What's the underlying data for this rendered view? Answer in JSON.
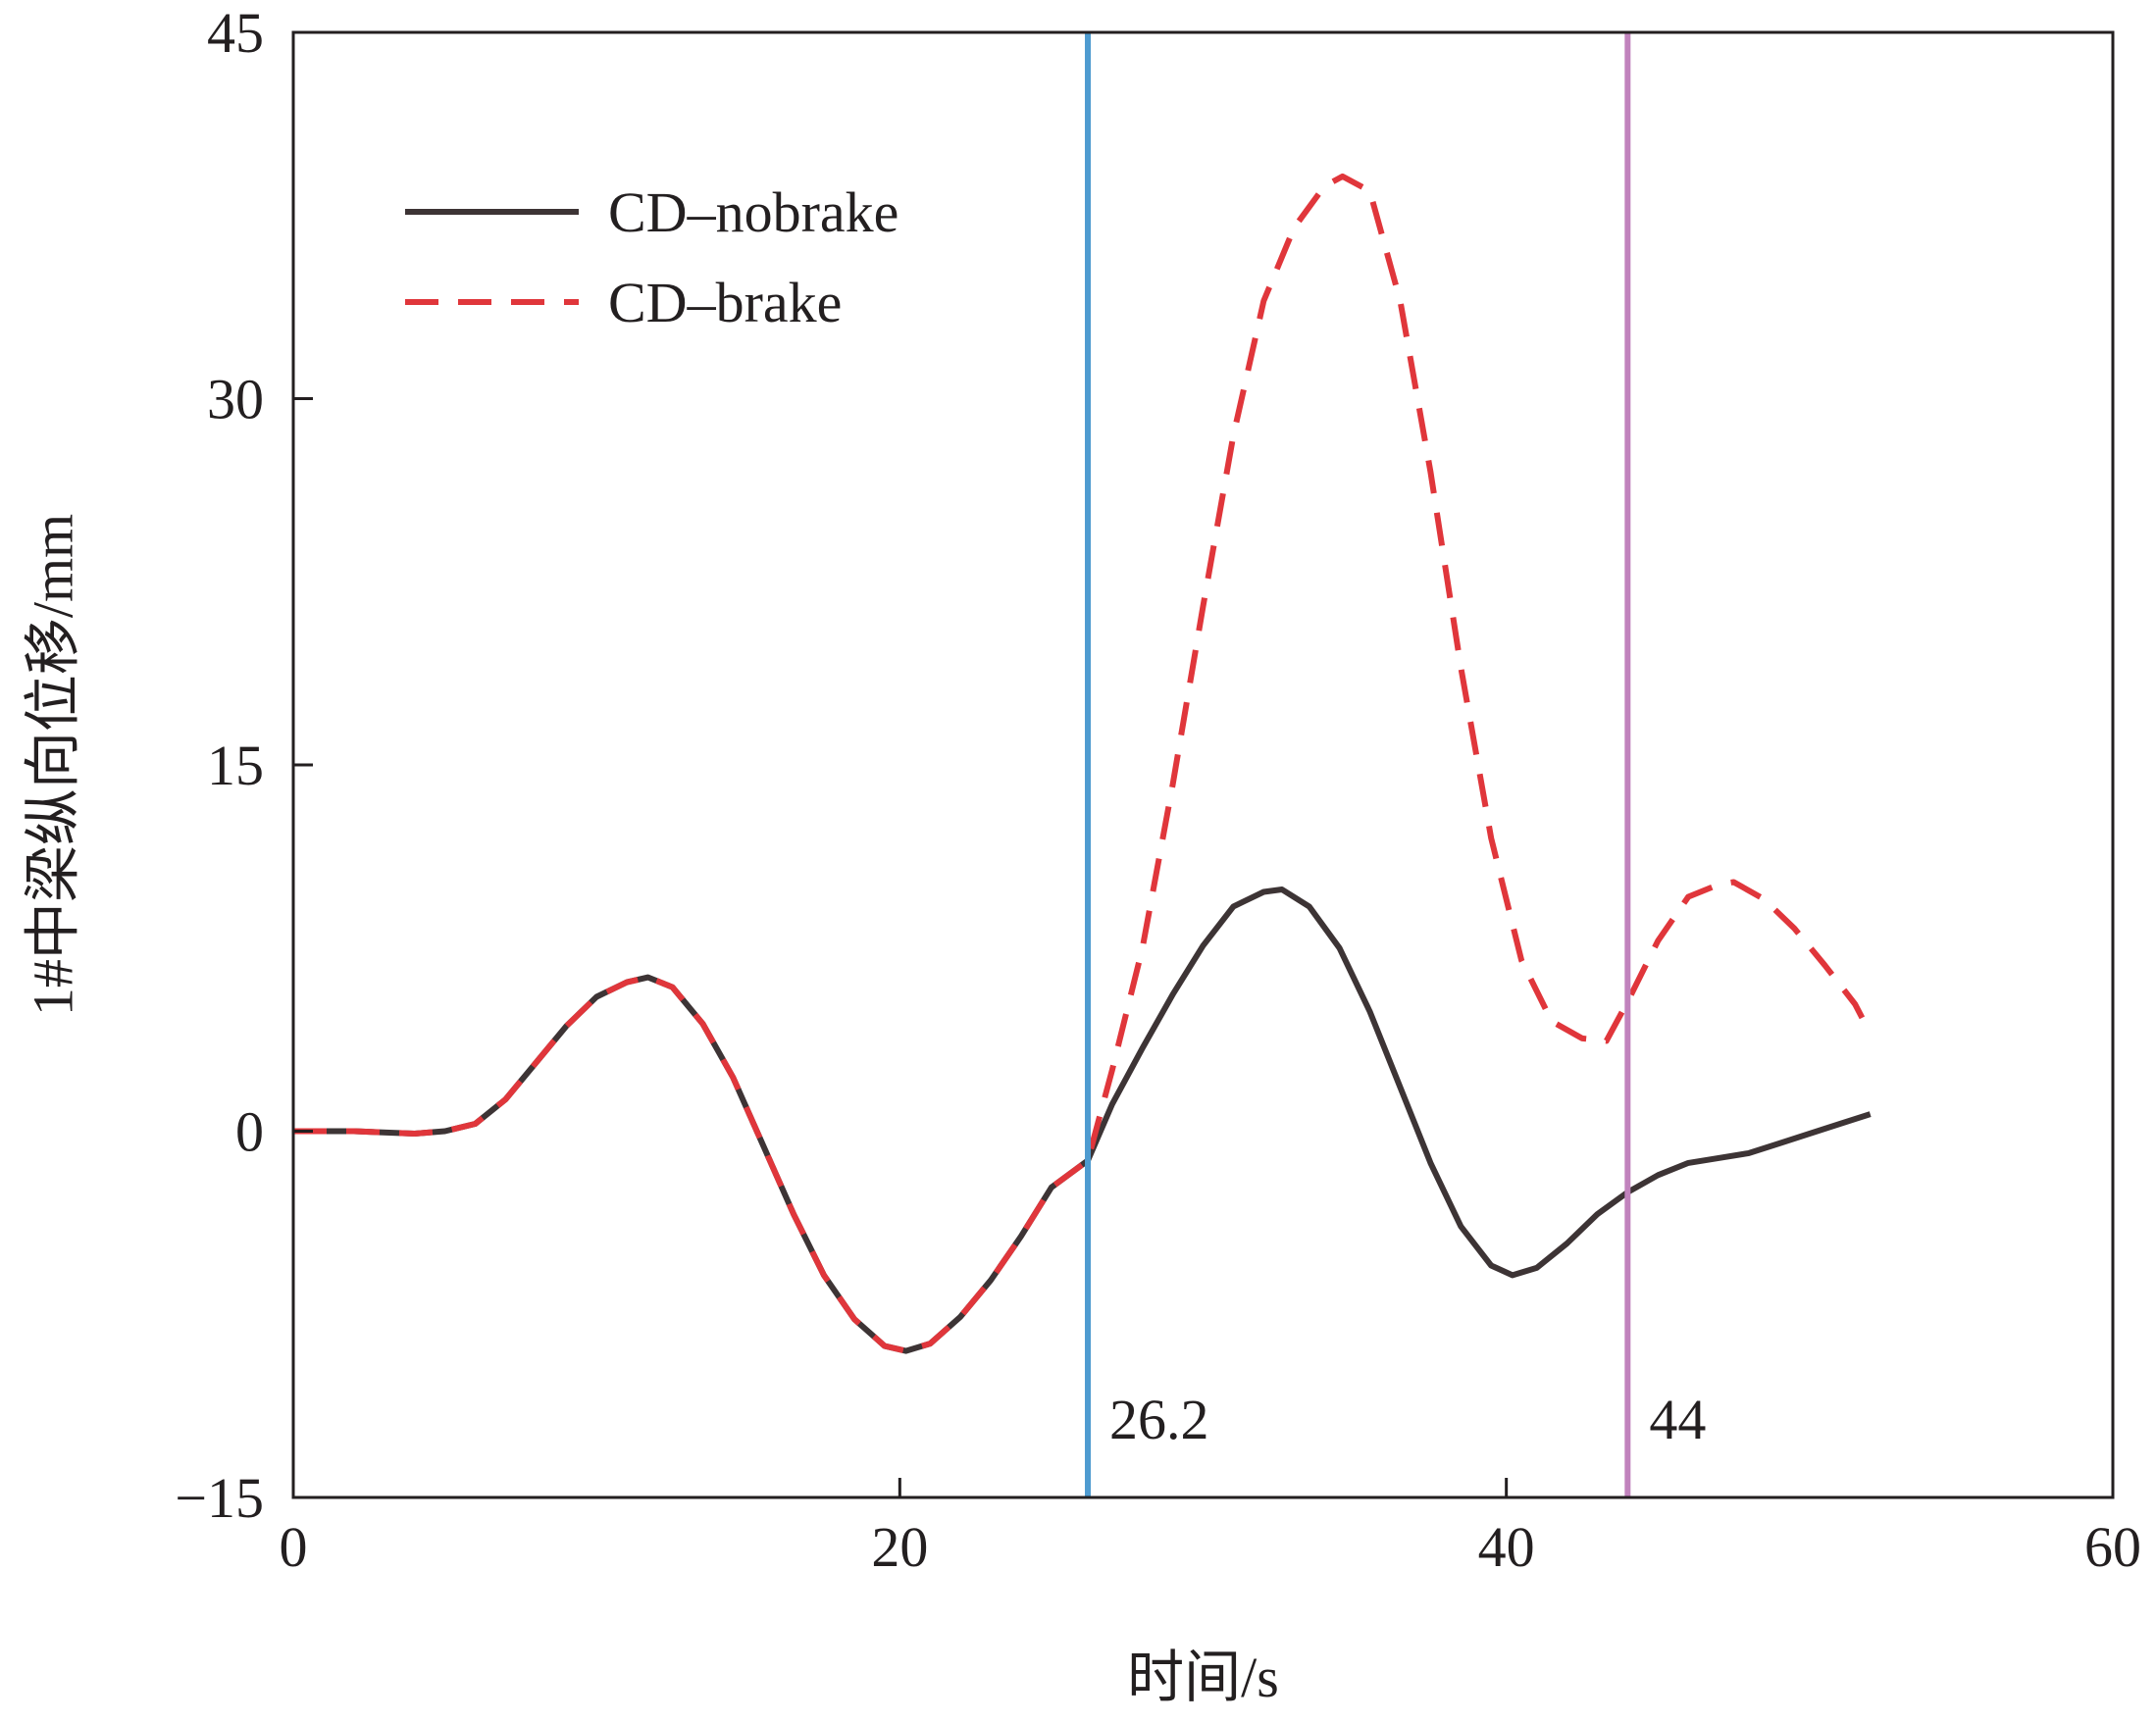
{
  "chart_data": {
    "type": "line",
    "xlabel": "时间/s",
    "ylabel": "1#中梁纵向位移/mm",
    "xlim": [
      0,
      60
    ],
    "ylim": [
      -15,
      45
    ],
    "xticks": [
      0,
      20,
      40,
      60
    ],
    "yticks": [
      -15,
      0,
      15,
      30,
      45
    ],
    "xtick_labels": [
      "0",
      "20",
      "40",
      "60"
    ],
    "ytick_labels": [
      "−15",
      "0",
      "15",
      "30",
      "45"
    ],
    "grid": false,
    "legend_position": "top-left",
    "series": [
      {
        "name": "CD–nobrake",
        "style": "solid",
        "color": "#3d3435",
        "x": [
          0,
          2,
          4,
          5,
          6,
          7,
          8,
          9,
          10,
          11,
          11.7,
          12.5,
          13.5,
          14.5,
          15.5,
          16.5,
          17.5,
          18.5,
          19.5,
          20.2,
          21,
          22,
          23,
          24,
          25,
          26.2,
          27,
          28,
          29,
          30,
          31,
          32,
          32.6,
          33.5,
          34.5,
          35.5,
          36.5,
          37.5,
          38.5,
          39.5,
          40.2,
          41,
          42,
          43,
          44,
          45,
          46,
          47,
          48,
          49,
          50,
          51,
          52
        ],
        "y": [
          0,
          0,
          -0.1,
          0,
          0.3,
          1.3,
          2.8,
          4.3,
          5.5,
          6.1,
          6.3,
          5.9,
          4.4,
          2.2,
          -0.6,
          -3.4,
          -5.9,
          -7.7,
          -8.8,
          -9.0,
          -8.7,
          -7.6,
          -6.1,
          -4.3,
          -2.3,
          -1.2,
          1.1,
          3.4,
          5.6,
          7.6,
          9.2,
          9.8,
          9.9,
          9.2,
          7.5,
          4.9,
          1.8,
          -1.3,
          -3.9,
          -5.5,
          -5.9,
          -5.6,
          -4.6,
          -3.4,
          -2.5,
          -1.8,
          -1.3,
          -1.1,
          -0.9,
          -0.5,
          -0.1,
          0.3,
          0.7
        ]
      },
      {
        "name": "CD–brake",
        "style": "dashed",
        "color": "#e0363b",
        "x": [
          0,
          2,
          4,
          5,
          6,
          7,
          8,
          9,
          10,
          11,
          11.7,
          12.5,
          13.5,
          14.5,
          15.5,
          16.5,
          17.5,
          18.5,
          19.5,
          20.2,
          21,
          22,
          23,
          24,
          25,
          26.2,
          27,
          28,
          29,
          30,
          31,
          32,
          33,
          34,
          34.6,
          35.5,
          36.5,
          37.5,
          38.5,
          39.5,
          40.5,
          41.5,
          42.5,
          43.3,
          44,
          45,
          46,
          47,
          47.5,
          48.5,
          49.5,
          50.5,
          51.5,
          52
        ],
        "y": [
          0,
          0,
          -0.1,
          0,
          0.3,
          1.3,
          2.8,
          4.3,
          5.5,
          6.1,
          6.3,
          5.9,
          4.4,
          2.2,
          -0.6,
          -3.4,
          -5.9,
          -7.7,
          -8.8,
          -9.0,
          -8.7,
          -7.6,
          -6.1,
          -4.3,
          -2.3,
          -1.2,
          2.5,
          7.5,
          14.2,
          21.5,
          28.5,
          34.0,
          37.0,
          38.7,
          39.1,
          38.5,
          34.0,
          27.0,
          19.0,
          12.0,
          7.0,
          4.5,
          3.8,
          3.7,
          5.3,
          7.8,
          9.6,
          10.1,
          10.2,
          9.5,
          8.3,
          6.8,
          5.2,
          4.0
        ]
      }
    ],
    "vertical_lines": [
      {
        "x": 26.2,
        "label": "26.2",
        "color": "#4e9bd0"
      },
      {
        "x": 44,
        "label": "44",
        "color": "#c183bd"
      }
    ]
  }
}
